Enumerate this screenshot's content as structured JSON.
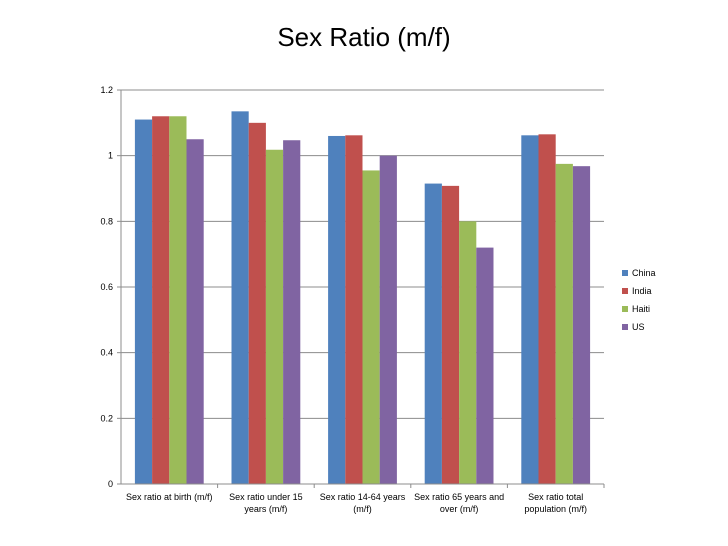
{
  "chart_data": {
    "type": "bar",
    "title": "Sex Ratio (m/f)",
    "xlabel": "",
    "ylabel": "",
    "ylim": [
      0,
      1.2
    ],
    "yticks": [
      "0",
      "0.2",
      "0.4",
      "0.6",
      "0.8",
      "1",
      "1.2"
    ],
    "grid": true,
    "legend_position": "right",
    "categories": [
      [
        "Sex ratio at birth (m/f)"
      ],
      [
        "Sex ratio under 15",
        "years (m/f)"
      ],
      [
        "Sex ratio 14-64 years",
        "(m/f)"
      ],
      [
        "Sex ratio 65 years and",
        "over (m/f)"
      ],
      [
        "Sex ratio total",
        "population (m/f)"
      ]
    ],
    "series": [
      {
        "name": "China",
        "color": "#4F81BD",
        "values": [
          1.11,
          1.135,
          1.06,
          0.915,
          1.062
        ]
      },
      {
        "name": "India",
        "color": "#C0504D",
        "values": [
          1.12,
          1.1,
          1.062,
          0.908,
          1.065
        ]
      },
      {
        "name": "Haiti",
        "color": "#9BBB59",
        "values": [
          1.12,
          1.018,
          0.955,
          0.8,
          0.975
        ]
      },
      {
        "name": "US",
        "color": "#8064A2",
        "values": [
          1.05,
          1.047,
          1.0,
          0.72,
          0.968
        ]
      }
    ]
  }
}
